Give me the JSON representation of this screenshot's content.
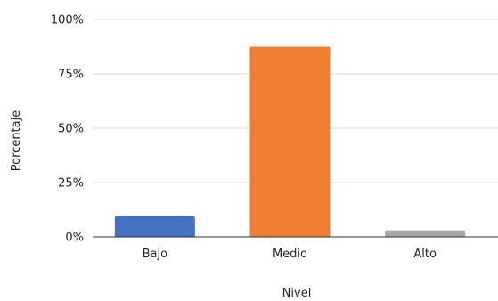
{
  "chart_data": {
    "type": "bar",
    "title": "",
    "xlabel": "Nivel",
    "ylabel": "Porcentaje",
    "categories": [
      "Bajo",
      "Medio",
      "Alto"
    ],
    "values": [
      9.5,
      87.5,
      3
    ],
    "colors": [
      "#4472C4",
      "#ED7D31",
      "#A5A5A5"
    ],
    "ylim": [
      0,
      100
    ],
    "yticks": [
      0,
      25,
      50,
      75,
      100
    ],
    "ytick_labels": [
      "0%",
      "25%",
      "50%",
      "75%",
      "100%"
    ],
    "grid": true,
    "legend": "none"
  }
}
